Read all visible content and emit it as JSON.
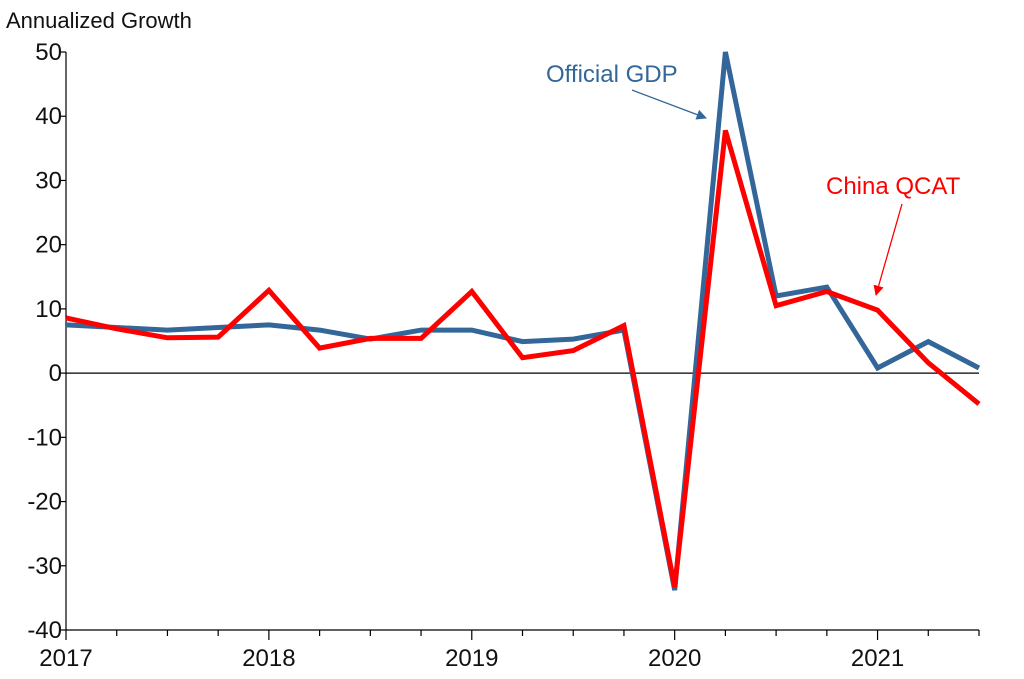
{
  "chart_data": {
    "type": "line",
    "ylabel": "Annualized Growth",
    "ylim": [
      -40,
      50
    ],
    "yticks": [
      50,
      40,
      30,
      20,
      10,
      0,
      -10,
      -20,
      -30,
      -40
    ],
    "x": [
      "2017Q1",
      "2017Q2",
      "2017Q3",
      "2017Q4",
      "2018Q1",
      "2018Q2",
      "2018Q3",
      "2018Q4",
      "2019Q1",
      "2019Q2",
      "2019Q3",
      "2019Q4",
      "2020Q1",
      "2020Q2",
      "2020Q3",
      "2020Q4",
      "2021Q1",
      "2021Q2",
      "2021Q3"
    ],
    "xlim": [
      "2017Q1",
      "2021Q4"
    ],
    "xtick_labels": [
      "2017",
      "2018",
      "2019",
      "2020",
      "2021"
    ],
    "zero_line": true,
    "grid": false,
    "series": [
      {
        "name": "Official GDP",
        "color": "#336699",
        "values": [
          7.5,
          7.1,
          6.7,
          7.1,
          7.5,
          6.7,
          5.3,
          6.7,
          6.7,
          4.9,
          5.3,
          6.7,
          -33.8,
          50.0,
          12.0,
          13.4,
          0.8,
          4.9,
          0.8
        ]
      },
      {
        "name": "China QCAT",
        "color": "#FF0000",
        "values": [
          8.6,
          6.9,
          5.5,
          5.6,
          12.9,
          3.9,
          5.4,
          5.4,
          12.7,
          2.4,
          3.5,
          7.4,
          -33.3,
          37.8,
          10.5,
          12.7,
          9.8,
          1.6,
          -4.8
        ]
      }
    ],
    "annotations": [
      {
        "text": "Official GDP",
        "series": "Official GDP",
        "color": "#336699"
      },
      {
        "text": "China QCAT",
        "series": "China QCAT",
        "color": "#FF0000"
      }
    ]
  }
}
